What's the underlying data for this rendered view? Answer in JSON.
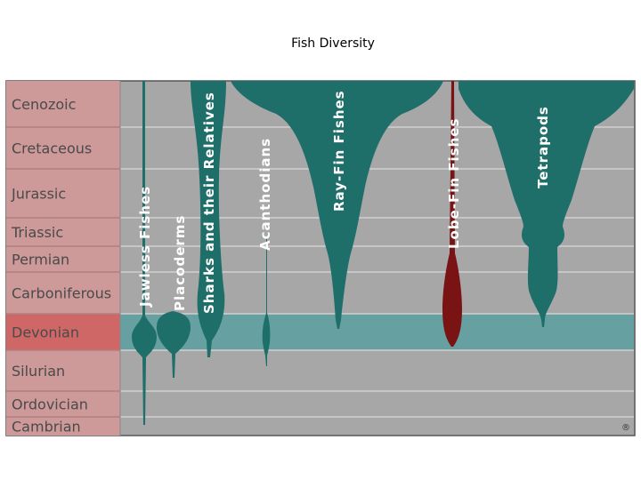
{
  "title": "Fish Diversity",
  "periods": [
    {
      "label": "Cenozoic",
      "highlight": false
    },
    {
      "label": "Cretaceous",
      "highlight": false
    },
    {
      "label": "Jurassic",
      "highlight": false
    },
    {
      "label": "Triassic",
      "highlight": false
    },
    {
      "label": "Permian",
      "highlight": false
    },
    {
      "label": "Carboniferous",
      "highlight": false
    },
    {
      "label": "Devonian",
      "highlight": true
    },
    {
      "label": "Silurian",
      "highlight": false
    },
    {
      "label": "Ordovician",
      "highlight": false
    },
    {
      "label": "Cambrian",
      "highlight": false
    }
  ],
  "groups": [
    {
      "name": "Jawless Fishes",
      "color": "#1e6e6a"
    },
    {
      "name": "Placoderms",
      "color": "#1e6e6a"
    },
    {
      "name": "Sharks and their Relatives",
      "color": "#1e6e6a"
    },
    {
      "name": "Acanthodians",
      "color": "#1e6e6a"
    },
    {
      "name": "Ray-Fin Fishes",
      "color": "#1e6e6a"
    },
    {
      "name": "Lobe-Fin Fishes",
      "color": "#7a1414"
    },
    {
      "name": "Tetrapods",
      "color": "#1e6e6a"
    }
  ],
  "colors": {
    "label_column": "#cd9999",
    "label_column_highlight": "#d06767",
    "plot_background": "#a7a7a7",
    "devonian_band": "#66a0a0",
    "grid_lines": "#d0d0d0",
    "label_text": "#4a4a4a",
    "group_text": "#ffffff"
  },
  "copyright_mark": "®"
}
